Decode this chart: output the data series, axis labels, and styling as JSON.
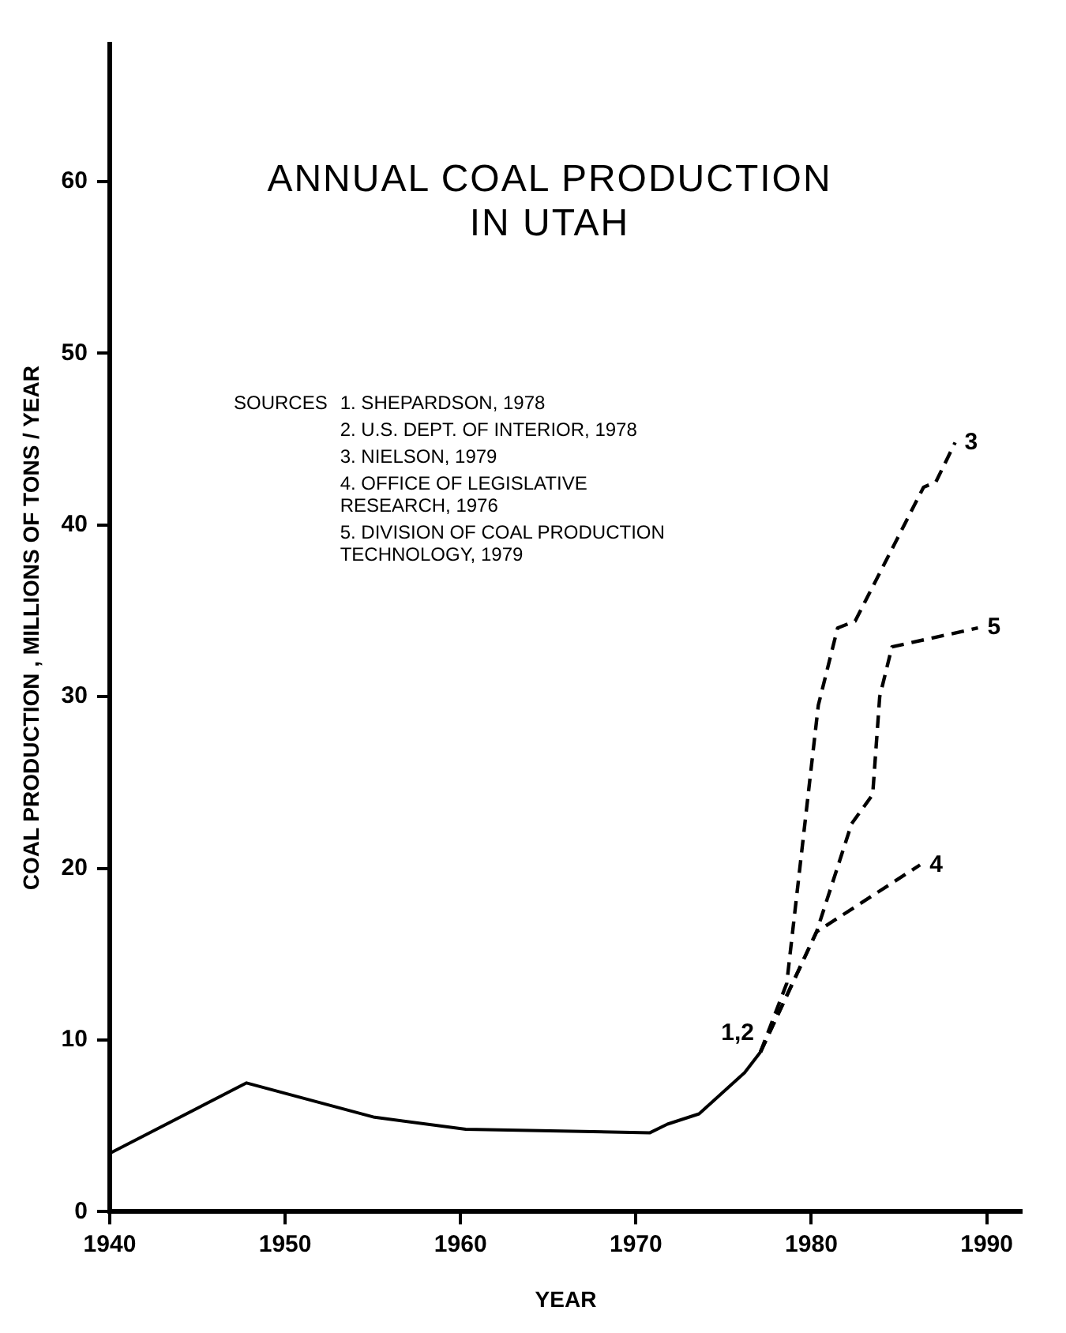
{
  "chart_data": {
    "type": "line",
    "title": "ANNUAL COAL PRODUCTION\nIN UTAH",
    "xlabel": "YEAR",
    "ylabel": "COAL PRODUCTION , MILLIONS OF TONS / YEAR",
    "annotations": [
      "SOURCES",
      "1. SHEPARDSON, 1978",
      "2. U.S. DEPT. OF INTERIOR, 1978",
      "3. NIELSON, 1979",
      "4. OFFICE OF LEGISLATIVE\nRESEARCH, 1976",
      "5. DIVISION OF COAL PRODUCTION\nTECHNOLOGY, 1979"
    ],
    "series": [
      {
        "name": "1,2",
        "color": "#000000",
        "line_style": "solid",
        "x": [
          1940,
          1947.8,
          1955.1,
          1960.3,
          1970.8,
          1971.8,
          1973.6,
          1976.2,
          1977.1
        ],
        "values": [
          3.4,
          7.5,
          5.5,
          4.8,
          4.6,
          5.1,
          5.7,
          8.1,
          9.3
        ]
      },
      {
        "name": "3",
        "color": "#000000",
        "line_style": "dashed",
        "x": [
          1977.1,
          1978.6,
          1980.4,
          1981.5,
          1982.5,
          1986.4,
          1987.1,
          1988.2
        ],
        "values": [
          9.3,
          13.3,
          29.5,
          34,
          34.4,
          42.2,
          42.5,
          44.8
        ]
      },
      {
        "name": "4",
        "color": "#000000",
        "line_style": "dashed",
        "x": [
          1977.1,
          1980.3,
          1986.2
        ],
        "values": [
          9.3,
          16.3,
          20.2
        ]
      },
      {
        "name": "5",
        "color": "#000000",
        "line_style": "dashed",
        "x": [
          1977.1,
          1980.3,
          1982.3,
          1983.5,
          1983.9,
          1984.6,
          1989.5
        ],
        "values": [
          9.3,
          16.3,
          22.6,
          24.3,
          30,
          32.9,
          34
        ]
      }
    ],
    "xlim": [
      1940,
      1992
    ],
    "xticks": [
      1940,
      1950,
      1960,
      1970,
      1980,
      1990
    ],
    "ylim": [
      0,
      68
    ],
    "yticks": [
      0,
      10,
      20,
      30,
      40,
      50,
      60
    ],
    "grid": false,
    "legend": false,
    "marker": "none"
  }
}
